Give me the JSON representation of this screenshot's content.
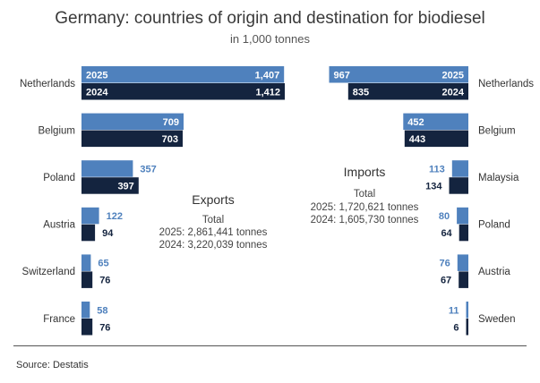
{
  "header": {
    "title": "Germany: countries of origin and destination for biodiesel",
    "subtitle": "in 1,000 tonnes"
  },
  "footer": {
    "source": "Source:  Destatis"
  },
  "colors": {
    "y2025": "#4f81bd",
    "y2024": "#14243f",
    "label2025": "#4f81bd",
    "label2024": "#14243f"
  },
  "chart_data": [
    {
      "type": "bar",
      "name_text": "Exports",
      "total_label": "Total",
      "total_lines": [
        "2025: 2,861,441 tonnes",
        "2024: 3,220,039 tonnes"
      ],
      "categories": [
        "Netherlands",
        "Belgium",
        "Poland",
        "Austria",
        "Switzerland",
        "France"
      ],
      "series": [
        {
          "name": "2025",
          "values": [
            1407,
            709,
            357,
            122,
            65,
            58
          ],
          "value_labels": [
            "1,407",
            "709",
            "357",
            "122",
            "65",
            "58"
          ]
        },
        {
          "name": "2024",
          "values": [
            1412,
            703,
            397,
            94,
            76,
            76
          ],
          "value_labels": [
            "1,412",
            "703",
            "397",
            "94",
            "76",
            "76"
          ]
        }
      ]
    },
    {
      "type": "bar",
      "name_text": "Imports",
      "total_label": "Total",
      "total_lines": [
        "2025:  1,720,621 tonnes",
        "2024: 1,605,730 tonnes"
      ],
      "categories": [
        "Netherlands",
        "Belgium",
        "Malaysia",
        "Poland",
        "Austria",
        "Sweden"
      ],
      "series": [
        {
          "name": "2025",
          "values": [
            967,
            452,
            113,
            80,
            76,
            11
          ],
          "value_labels": [
            "967",
            "452",
            "113",
            "80",
            "76",
            "11"
          ]
        },
        {
          "name": "2024",
          "values": [
            835,
            443,
            134,
            64,
            67,
            6
          ],
          "value_labels": [
            "835",
            "443",
            "134",
            "64",
            "67",
            "6"
          ]
        }
      ]
    }
  ]
}
